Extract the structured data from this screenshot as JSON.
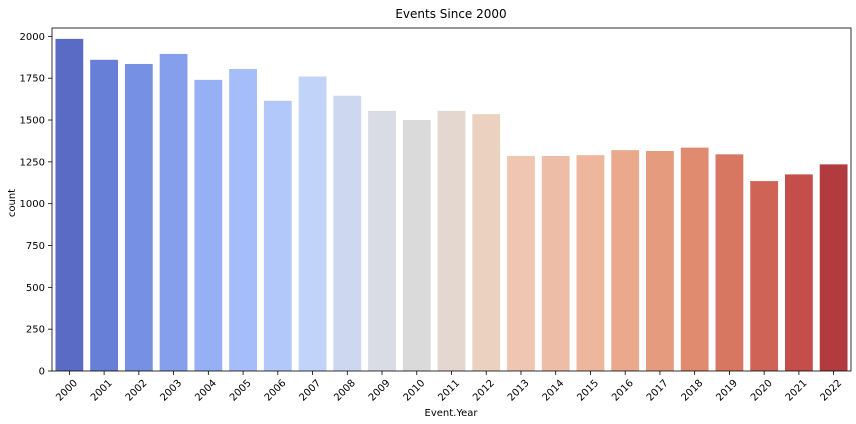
{
  "chart_data": {
    "type": "bar",
    "title": "Events Since 2000",
    "xlabel": "Event.Year",
    "ylabel": "count",
    "categories": [
      "2000",
      "2001",
      "2002",
      "2003",
      "2004",
      "2005",
      "2006",
      "2007",
      "2008",
      "2009",
      "2010",
      "2011",
      "2012",
      "2013",
      "2014",
      "2015",
      "2016",
      "2017",
      "2018",
      "2019",
      "2020",
      "2021",
      "2022"
    ],
    "values": [
      1985,
      1860,
      1835,
      1895,
      1740,
      1805,
      1615,
      1760,
      1645,
      1555,
      1500,
      1555,
      1535,
      1285,
      1285,
      1290,
      1320,
      1315,
      1335,
      1295,
      1135,
      1175,
      1235
    ],
    "ylim": [
      0,
      2050
    ],
    "yticks": [
      0,
      250,
      500,
      750,
      1000,
      1250,
      1500,
      1750,
      2000
    ],
    "colors": [
      "#5a6bc6",
      "#677fd7",
      "#7691e3",
      "#859fec",
      "#96b0f5",
      "#a5bef9",
      "#b3c8fa",
      "#c1d3f9",
      "#cdd8f0",
      "#d9dce5",
      "#dadada",
      "#e3d7cf",
      "#ebd1c0",
      "#efc6b1",
      "#eebda7",
      "#edb69d",
      "#eaa98d",
      "#e59b7e",
      "#e08a70",
      "#d77762",
      "#cf6456",
      "#c44e4a",
      "#b23b3f"
    ],
    "grid": false,
    "legend": "none"
  }
}
